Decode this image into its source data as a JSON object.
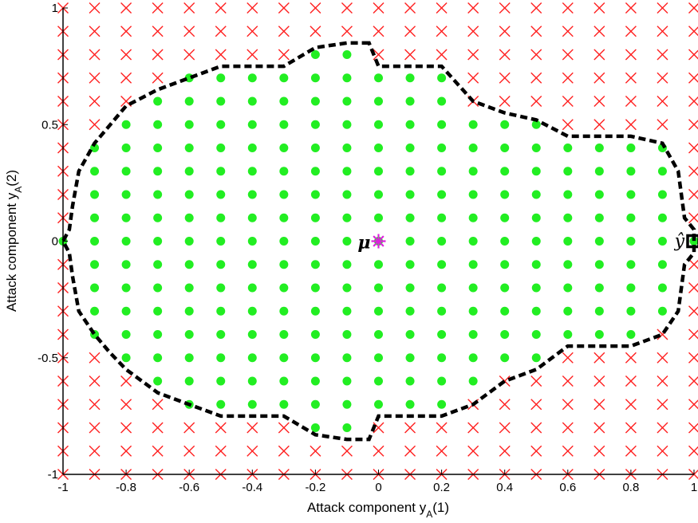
{
  "chart_data": {
    "type": "scatter",
    "xlabel": "Attack component y",
    "xlabel_sub": "A",
    "xlabel_suffix": "(1)",
    "ylabel": "Attack component y",
    "ylabel_sub": "A",
    "ylabel_suffix": "(2)",
    "xlim": [
      -1,
      1
    ],
    "ylim": [
      -1,
      1
    ],
    "grid": false,
    "x_ticks": [
      "-1",
      "-0.8",
      "-0.6",
      "-0.4",
      "-0.2",
      "0",
      "0.2",
      "0.4",
      "0.6",
      "0.8",
      "1"
    ],
    "x_tick_values": [
      -1,
      -0.8,
      -0.6,
      -0.4,
      -0.2,
      0,
      0.2,
      0.4,
      0.6,
      0.8,
      1
    ],
    "y_ticks": [
      "-1",
      "-0.5",
      "0",
      "0.5",
      "1"
    ],
    "y_tick_values": [
      -1,
      -0.5,
      0,
      0.5,
      1
    ],
    "grid_step": 0.1,
    "colors": {
      "inside_marker": "#22ee22",
      "outside_marker": "#ff2020",
      "boundary": "#000000",
      "mu_marker": "#dd22dd"
    },
    "boundary_polygon": [
      [
        -0.03,
        0.85
      ],
      [
        -0.1,
        0.85
      ],
      [
        -0.2,
        0.83
      ],
      [
        -0.3,
        0.75
      ],
      [
        -0.5,
        0.75
      ],
      [
        -0.6,
        0.7
      ],
      [
        -0.7,
        0.65
      ],
      [
        -0.8,
        0.58
      ],
      [
        -0.85,
        0.5
      ],
      [
        -0.9,
        0.42
      ],
      [
        -0.95,
        0.3
      ],
      [
        -0.97,
        0.15
      ],
      [
        -0.98,
        0.05
      ],
      [
        -1.0,
        0.0
      ],
      [
        -0.98,
        -0.05
      ],
      [
        -0.97,
        -0.15
      ],
      [
        -0.95,
        -0.3
      ],
      [
        -0.9,
        -0.4
      ],
      [
        -0.85,
        -0.48
      ],
      [
        -0.8,
        -0.55
      ],
      [
        -0.7,
        -0.65
      ],
      [
        -0.6,
        -0.7
      ],
      [
        -0.5,
        -0.75
      ],
      [
        -0.3,
        -0.75
      ],
      [
        -0.2,
        -0.83
      ],
      [
        -0.1,
        -0.85
      ],
      [
        -0.03,
        -0.85
      ],
      [
        0.0,
        -0.75
      ],
      [
        0.2,
        -0.75
      ],
      [
        0.3,
        -0.7
      ],
      [
        0.4,
        -0.6
      ],
      [
        0.5,
        -0.55
      ],
      [
        0.6,
        -0.45
      ],
      [
        0.8,
        -0.45
      ],
      [
        0.9,
        -0.4
      ],
      [
        0.95,
        -0.3
      ],
      [
        0.97,
        -0.1
      ],
      [
        1.0,
        -0.05
      ],
      [
        1.0,
        0.05
      ],
      [
        0.97,
        0.1
      ],
      [
        0.95,
        0.3
      ],
      [
        0.9,
        0.42
      ],
      [
        0.8,
        0.45
      ],
      [
        0.6,
        0.45
      ],
      [
        0.5,
        0.52
      ],
      [
        0.4,
        0.55
      ],
      [
        0.3,
        0.6
      ],
      [
        0.2,
        0.75
      ],
      [
        0.0,
        0.75
      ]
    ],
    "annotations": [
      {
        "label": "μ",
        "x": 0,
        "y": 0,
        "marker": "asterisk"
      },
      {
        "label": "ŷ",
        "x": 1,
        "y": 0,
        "marker": "square"
      }
    ]
  }
}
